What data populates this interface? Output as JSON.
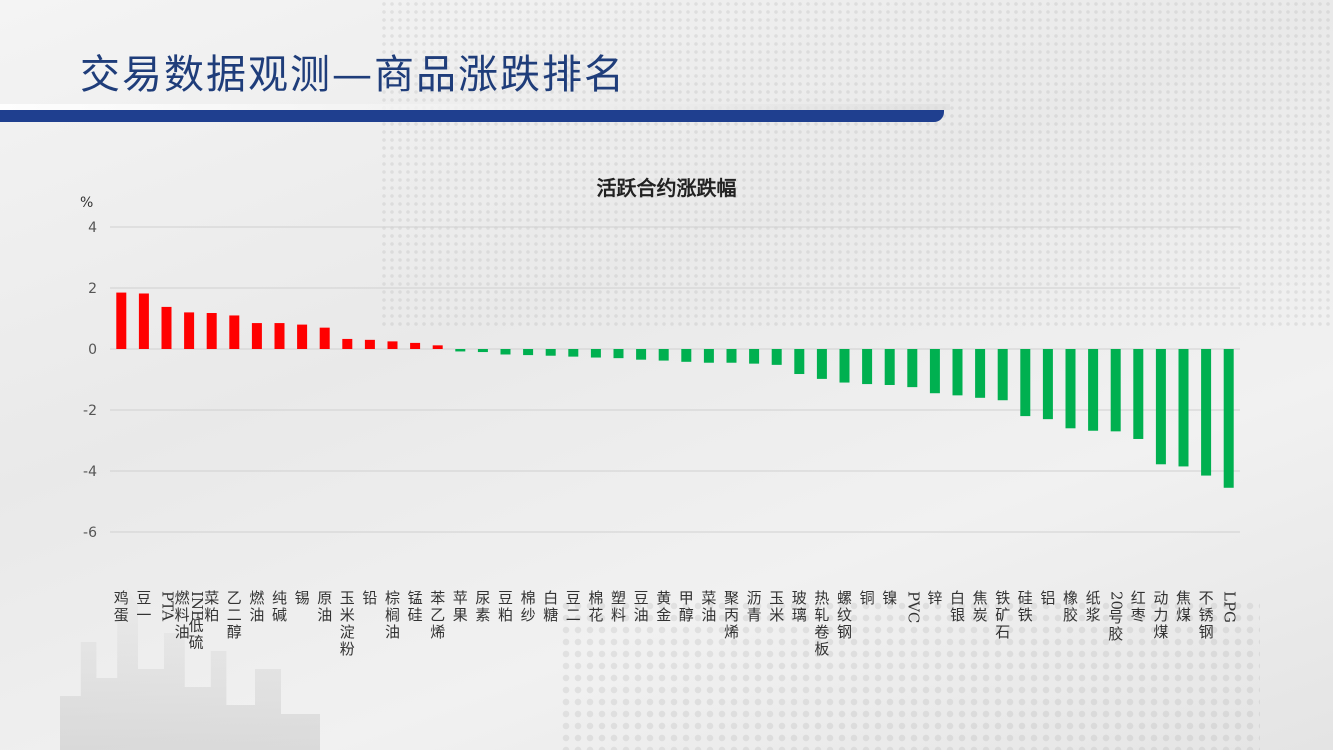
{
  "slide": {
    "title": "交易数据观测—商品涨跌排名"
  },
  "colors": {
    "up": "#ff0000",
    "down": "#00b050",
    "title_bar": "#1f3f8f",
    "title_text": "#1f3d7a"
  },
  "chart_data": {
    "type": "bar",
    "title": "活跃合约涨跌幅",
    "ylabel": "%",
    "xlabel": "",
    "ylim": [
      -6,
      4
    ],
    "yticks": [
      4,
      2,
      0,
      -2,
      -4,
      -6
    ],
    "grid": true,
    "legend": "none",
    "categories": [
      "鸡蛋",
      "豆一",
      "PTA",
      "INE低硫燃料油",
      "菜粕",
      "乙二醇",
      "燃油",
      "纯碱",
      "锡",
      "原油",
      "玉米淀粉",
      "铅",
      "棕榈油",
      "锰硅",
      "苯乙烯",
      "苹果",
      "尿素",
      "豆粕",
      "棉纱",
      "白糖",
      "豆二",
      "棉花",
      "塑料",
      "豆油",
      "黄金",
      "甲醇",
      "菜油",
      "聚丙烯",
      "沥青",
      "玉米",
      "玻璃",
      "热轧卷板",
      "螺纹钢",
      "铜",
      "镍",
      "PVC",
      "锌",
      "白银",
      "焦炭",
      "铁矿石",
      "硅铁",
      "铝",
      "橡胶",
      "纸浆",
      "20号胶",
      "红枣",
      "动力煤",
      "焦煤",
      "不锈钢",
      "LPG"
    ],
    "values": [
      1.85,
      1.82,
      1.38,
      1.2,
      1.18,
      1.1,
      0.85,
      0.85,
      0.8,
      0.7,
      0.33,
      0.3,
      0.25,
      0.2,
      0.12,
      -0.08,
      -0.1,
      -0.18,
      -0.2,
      -0.22,
      -0.25,
      -0.28,
      -0.3,
      -0.35,
      -0.38,
      -0.42,
      -0.45,
      -0.45,
      -0.48,
      -0.52,
      -0.82,
      -0.98,
      -1.1,
      -1.15,
      -1.18,
      -1.25,
      -1.45,
      -1.52,
      -1.6,
      -1.68,
      -2.2,
      -2.3,
      -2.6,
      -2.68,
      -2.7,
      -2.95,
      -3.78,
      -3.85,
      -4.15,
      -4.55
    ]
  }
}
